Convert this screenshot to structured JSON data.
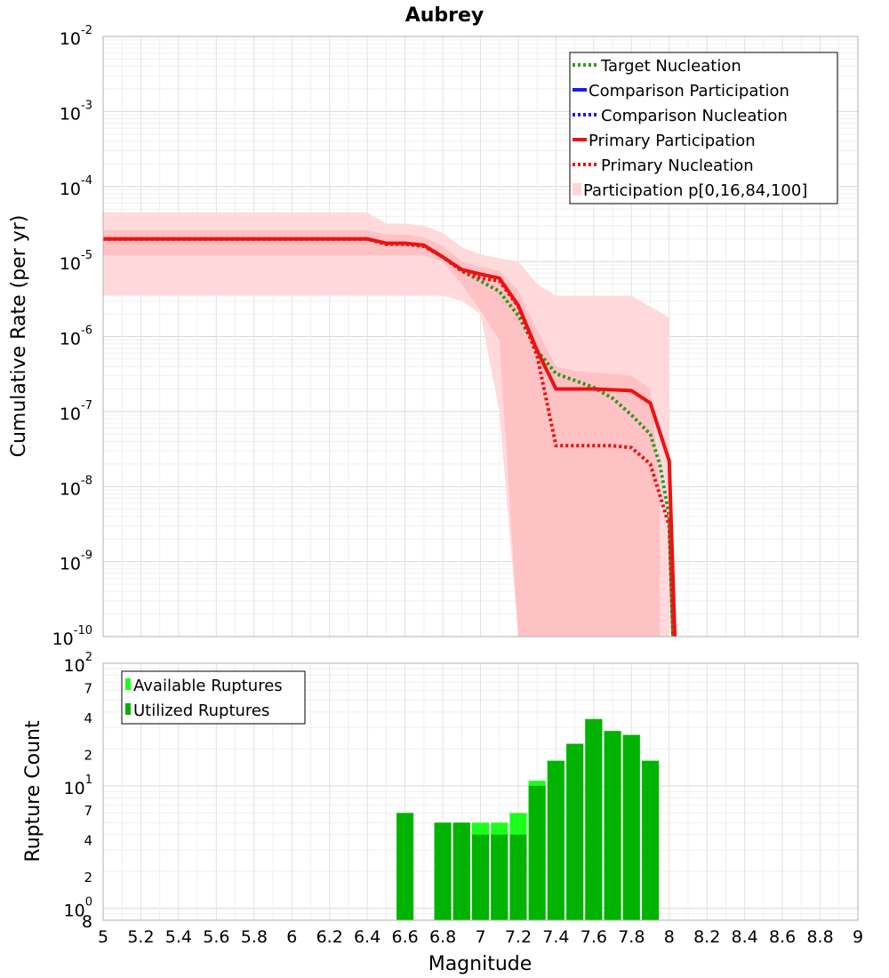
{
  "chart_data": [
    {
      "type": "line",
      "title": "Aubrey",
      "xlabel": "Magnitude",
      "ylabel": "Cumulative Rate (per yr)",
      "xlim": [
        5,
        9
      ],
      "ylim": [
        1e-10,
        0.01
      ],
      "yscale": "log",
      "x_ticks": [
        "5",
        "5.2",
        "5.4",
        "5.6",
        "5.8",
        "6",
        "6.2",
        "6.4",
        "6.6",
        "6.8",
        "7",
        "7.2",
        "7.4",
        "7.6",
        "7.8",
        "8",
        "8.2",
        "8.4",
        "8.6",
        "8.8",
        "9"
      ],
      "y_ticks": [
        {
          "base": "10",
          "exp": "-2"
        },
        {
          "base": "10",
          "exp": "-3"
        },
        {
          "base": "10",
          "exp": "-4"
        },
        {
          "base": "10",
          "exp": "-5"
        },
        {
          "base": "10",
          "exp": "-6"
        },
        {
          "base": "10",
          "exp": "-7"
        },
        {
          "base": "10",
          "exp": "-8"
        },
        {
          "base": "10",
          "exp": "-9"
        },
        {
          "base": "10",
          "exp": "-10"
        }
      ],
      "legend": [
        "Target Nucleation",
        "Comparison Participation",
        "Comparison Nucleation",
        "Primary Participation",
        "Primary Nucleation",
        "Participation p[0,16,84,100]"
      ],
      "legend_position": "top-right",
      "series": [
        {
          "name": "Target Nucleation",
          "color": "#2e9a1e",
          "style": "dotted",
          "x": [
            5.0,
            6.4,
            6.5,
            6.6,
            6.7,
            6.8,
            6.9,
            7.0,
            7.1,
            7.2,
            7.3,
            7.4,
            7.5,
            7.6,
            7.7,
            7.8,
            7.9,
            7.95,
            8.0,
            8.02
          ],
          "y": [
            2e-05,
            2e-05,
            1.7e-05,
            1.75e-05,
            1.6e-05,
            1.15e-05,
            7.5e-06,
            5.5e-06,
            4e-06,
            1.9e-06,
            6.5e-07,
            3.2e-07,
            2.6e-07,
            2.1e-07,
            1.5e-07,
            9e-08,
            5e-08,
            2e-08,
            4e-09,
            1e-10
          ]
        },
        {
          "name": "Primary Nucleation",
          "color": "#ee1111",
          "style": "dotted",
          "x": [
            5.0,
            6.4,
            6.5,
            6.6,
            6.7,
            6.8,
            6.9,
            7.0,
            7.1,
            7.2,
            7.3,
            7.4,
            7.5,
            7.6,
            7.7,
            7.8,
            7.9,
            8.0,
            8.02
          ],
          "y": [
            2e-05,
            2e-05,
            1.7e-05,
            1.7e-05,
            1.6e-05,
            1.15e-05,
            7.5e-06,
            6e-06,
            5.5e-06,
            2.5e-06,
            5.5e-07,
            3.5e-08,
            3.5e-08,
            3.5e-08,
            3.5e-08,
            3.3e-08,
            2e-08,
            3e-09,
            1e-10
          ]
        },
        {
          "name": "Primary Participation",
          "color": "#ee1111",
          "style": "solid",
          "x": [
            5.0,
            6.4,
            6.5,
            6.6,
            6.7,
            6.8,
            6.9,
            7.0,
            7.1,
            7.2,
            7.3,
            7.4,
            7.5,
            7.6,
            7.7,
            7.8,
            7.9,
            8.0,
            8.03
          ],
          "y": [
            2e-05,
            2e-05,
            1.75e-05,
            1.75e-05,
            1.65e-05,
            1.15e-05,
            7.8e-06,
            6.8e-06,
            6e-06,
            2.6e-06,
            6.5e-07,
            2e-07,
            2e-07,
            2e-07,
            1.95e-07,
            1.9e-07,
            1.3e-07,
            2.2e-08,
            1e-10
          ]
        }
      ],
      "bands": [
        {
          "name": "Participation p[0,100]",
          "x": [
            5.0,
            6.4,
            6.5,
            6.6,
            6.7,
            6.8,
            6.9,
            7.0,
            7.1,
            7.2,
            7.3,
            7.4,
            7.5,
            7.6,
            7.7,
            7.8,
            7.9,
            8.0
          ],
          "upper": [
            4.5e-05,
            4.5e-05,
            3.2e-05,
            3.2e-05,
            3e-05,
            2.4e-05,
            1.55e-05,
            1.25e-05,
            1.1e-05,
            1e-05,
            5e-06,
            3.5e-06,
            3.5e-06,
            3.5e-06,
            3.5e-06,
            3.5e-06,
            2.5e-06,
            1.8e-06
          ],
          "lower": [
            3.5e-06,
            3.5e-06,
            3.5e-06,
            3.5e-06,
            3.5e-06,
            3.5e-06,
            3e-06,
            2e-06,
            1e-07,
            1e-10,
            1e-10,
            1e-10,
            1e-10,
            1e-10,
            1e-10,
            1e-10,
            1e-10,
            1e-10
          ]
        },
        {
          "name": "Participation p[16,84]",
          "x": [
            5.0,
            6.4,
            6.5,
            6.6,
            6.7,
            6.8,
            6.9,
            7.0,
            7.1,
            7.2,
            7.3,
            7.4,
            7.5,
            7.6,
            7.7,
            7.8,
            7.9,
            7.95
          ],
          "upper": [
            2.6e-05,
            2.6e-05,
            2.3e-05,
            2.3e-05,
            2.1e-05,
            1.6e-05,
            1e-05,
            8.5e-06,
            7.5e-06,
            4e-06,
            1.2e-06,
            4e-07,
            3.5e-07,
            3.3e-07,
            3.2e-07,
            3e-07,
            2e-07,
            1e-08
          ],
          "lower": [
            1.2e-05,
            1.2e-05,
            1.2e-05,
            1.2e-05,
            1.2e-05,
            1e-05,
            5e-06,
            2.2e-06,
            9e-07,
            1e-10,
            1e-10,
            1e-10,
            1e-10,
            1e-10,
            1e-10,
            1e-10,
            1e-10,
            1e-10
          ]
        }
      ]
    },
    {
      "type": "bar",
      "xlabel": "Magnitude",
      "ylabel": "Rupture Count",
      "yscale": "log",
      "ylim": [
        0.8,
        100
      ],
      "y_ticks": [
        {
          "base": "10",
          "exp": "2"
        },
        {
          "base": "10",
          "exp": "1"
        },
        {
          "base": "10",
          "exp": "0"
        }
      ],
      "y_minor_ticks": [
        {
          "value": 70,
          "label": "7"
        },
        {
          "value": 40,
          "label": "4"
        },
        {
          "value": 20,
          "label": "2"
        },
        {
          "value": 7,
          "label": "7"
        },
        {
          "value": 4,
          "label": "4"
        },
        {
          "value": 2,
          "label": "2"
        },
        {
          "value": 0.8,
          "label": "8"
        }
      ],
      "legend": [
        "Available Ruptures",
        "Utilized Ruptures"
      ],
      "legend_position": "top-left",
      "bar_width": 0.09,
      "series": [
        {
          "name": "Available Ruptures",
          "color": "#1aff1a",
          "x": [
            6.6,
            6.8,
            6.9,
            7.0,
            7.1,
            7.2,
            7.3,
            7.4,
            7.5,
            7.6,
            7.7,
            7.8,
            7.9
          ],
          "values": [
            6,
            5,
            5,
            5,
            5,
            6,
            11,
            16,
            22,
            35,
            28,
            26,
            16
          ]
        },
        {
          "name": "Utilized Ruptures",
          "color": "#00b300",
          "x": [
            6.6,
            6.8,
            6.9,
            7.0,
            7.1,
            7.2,
            7.3,
            7.4,
            7.5,
            7.6,
            7.7,
            7.8,
            7.9
          ],
          "values": [
            6,
            5,
            5,
            4,
            4,
            4,
            10,
            16,
            22,
            35,
            28,
            26,
            16
          ]
        }
      ]
    }
  ]
}
